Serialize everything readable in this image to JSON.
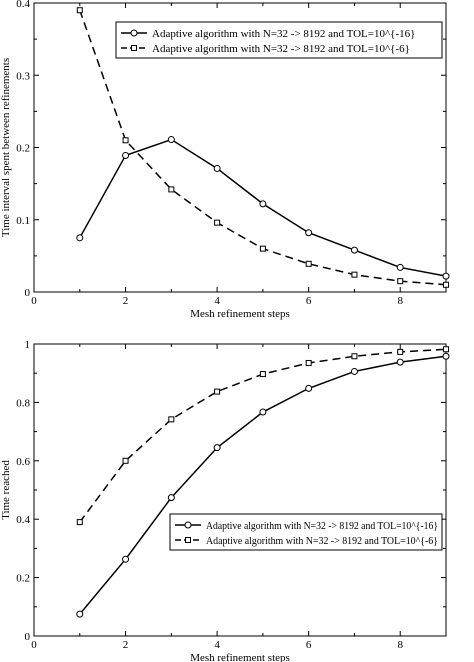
{
  "chart_data": [
    {
      "type": "line",
      "xlabel": "Mesh refinement steps",
      "ylabel": "Time interval spent between refinements",
      "xlim": [
        0,
        9
      ],
      "ylim": [
        0,
        0.4
      ],
      "xticks": [
        0,
        2,
        4,
        6,
        8
      ],
      "yticks": [
        0,
        0.1,
        0.2,
        0.3,
        0.4
      ],
      "grid": false,
      "legend_position": "top-right",
      "series": [
        {
          "name": "Adaptive algorithm  with  N=32 -> 8192 and TOL=10^{-16}",
          "line_style": "solid",
          "marker": "circle",
          "x": [
            1,
            2,
            3,
            4,
            5,
            6,
            7,
            8,
            9
          ],
          "y": [
            0.075,
            0.189,
            0.211,
            0.171,
            0.122,
            0.082,
            0.058,
            0.034,
            0.022
          ]
        },
        {
          "name": "Adaptive algorithm  with  N=32 -> 8192 and TOL=10^{-6}",
          "line_style": "dashed",
          "marker": "square",
          "x": [
            1,
            2,
            3,
            4,
            5,
            6,
            7,
            8,
            9
          ],
          "y": [
            0.39,
            0.21,
            0.142,
            0.096,
            0.06,
            0.039,
            0.024,
            0.015,
            0.01
          ]
        }
      ]
    },
    {
      "type": "line",
      "xlabel": "Mesh refinement steps",
      "ylabel": "Time reached",
      "xlim": [
        0,
        9
      ],
      "ylim": [
        0,
        1
      ],
      "xticks": [
        0,
        2,
        4,
        6,
        8
      ],
      "yticks": [
        0,
        0.2,
        0.4,
        0.6,
        0.8,
        1
      ],
      "grid": false,
      "legend_position": "center-right",
      "series": [
        {
          "name": "Adaptive algorithm  with  N=32 -> 8192 and TOL=10^{-16}",
          "line_style": "solid",
          "marker": "circle",
          "x": [
            1,
            2,
            3,
            4,
            5,
            6,
            7,
            8,
            9
          ],
          "y": [
            0.075,
            0.263,
            0.474,
            0.645,
            0.767,
            0.848,
            0.906,
            0.938,
            0.958
          ]
        },
        {
          "name": "Adaptive algorithm  with  N=32 -> 8192 and TOL=10^{-6}",
          "line_style": "dashed",
          "marker": "square",
          "x": [
            1,
            2,
            3,
            4,
            5,
            6,
            7,
            8,
            9
          ],
          "y": [
            0.39,
            0.6,
            0.742,
            0.837,
            0.897,
            0.935,
            0.958,
            0.973,
            0.982
          ]
        }
      ]
    }
  ]
}
